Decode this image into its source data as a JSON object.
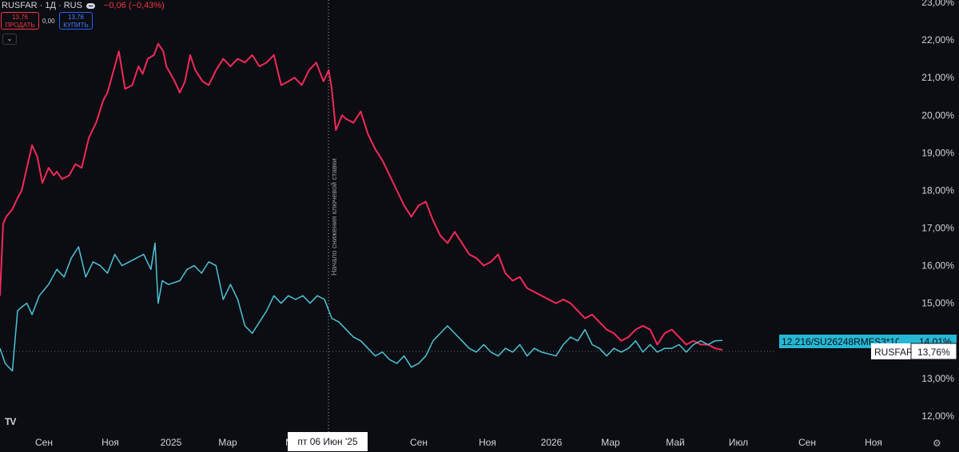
{
  "header": {
    "symbol": "RUSFAR · 1Д · RUS",
    "change": "−0,06 (−0,43%)",
    "sell_price": "13,76",
    "sell_label": "ПРОДАТЬ",
    "spread": "0,00",
    "buy_price": "13,76",
    "buy_label": "КУПИТЬ",
    "collapse_icon": "chevron-down-icon"
  },
  "logo": "TV",
  "settings_icon": "gear-icon",
  "colors": {
    "background": "#0b0d12",
    "rusfar": "#f2295b",
    "bond": "#4fc3d6",
    "axis_text": "#d1d4dc"
  },
  "crosshair_date": "пт 06 Июн '25",
  "annotation": "Начало снижения ключевой ставки",
  "labels": {
    "bond_name": "12.216/SU26248RMFS3*100",
    "bond_value": "14,01%",
    "rusfar_name": "RUSFAR",
    "rusfar_value": "13,76%"
  },
  "chart_data": {
    "type": "line",
    "x_ticks": [
      "Сен",
      "Ноя",
      "2025",
      "Мар",
      "М",
      "Сен",
      "Ноя",
      "2026",
      "Мар",
      "Май",
      "Июл",
      "Сен",
      "Ноя"
    ],
    "y_ticks": [
      "12,00%",
      "13,00%",
      "14,00%",
      "15,00%",
      "16,00%",
      "17,00%",
      "18,00%",
      "19,00%",
      "20,00%",
      "21,00%",
      "22,00%",
      "23,00%"
    ],
    "ylim": [
      11.7,
      23.1
    ],
    "grid": false,
    "series": [
      {
        "name": "RUSFAR",
        "color": "#f2295b",
        "x": [
          "2024-07-20",
          "2024-07-23",
          "2024-07-26",
          "2024-08-01",
          "2024-08-06",
          "2024-08-10",
          "2024-08-15",
          "2024-08-20",
          "2024-08-25",
          "2024-08-30",
          "2024-09-05",
          "2024-09-10",
          "2024-09-13",
          "2024-09-18",
          "2024-09-25",
          "2024-10-01",
          "2024-10-07",
          "2024-10-14",
          "2024-10-21",
          "2024-10-28",
          "2024-11-01",
          "2024-11-06",
          "2024-11-12",
          "2024-11-18",
          "2024-11-25",
          "2024-12-01",
          "2024-12-05",
          "2024-12-10",
          "2024-12-16",
          "2024-12-20",
          "2024-12-25",
          "2024-12-28",
          "2025-01-05",
          "2025-01-10",
          "2025-01-15",
          "2025-01-20",
          "2025-01-25",
          "2025-02-01",
          "2025-02-07",
          "2025-02-14",
          "2025-02-21",
          "2025-02-28",
          "2025-03-07",
          "2025-03-14",
          "2025-03-21",
          "2025-03-28",
          "2025-04-04",
          "2025-04-11",
          "2025-04-18",
          "2025-04-25",
          "2025-05-01",
          "2025-05-08",
          "2025-05-15",
          "2025-05-22",
          "2025-05-29",
          "2025-06-03",
          "2025-06-06",
          "2025-06-10",
          "2025-06-16",
          "2025-06-20",
          "2025-06-27",
          "2025-07-04",
          "2025-07-11",
          "2025-07-18",
          "2025-07-25",
          "2025-08-01",
          "2025-08-08",
          "2025-08-15",
          "2025-08-22",
          "2025-08-29",
          "2025-09-05",
          "2025-09-12",
          "2025-09-19",
          "2025-09-26",
          "2025-10-03",
          "2025-10-10",
          "2025-10-17",
          "2025-10-24",
          "2025-10-31",
          "2025-11-07",
          "2025-11-14",
          "2025-11-21",
          "2025-11-28",
          "2025-12-05",
          "2025-12-12",
          "2025-12-19",
          "2025-12-26",
          "2026-01-09",
          "2026-01-16",
          "2026-01-23",
          "2026-01-30",
          "2026-02-06",
          "2026-02-13",
          "2026-02-20",
          "2026-02-27",
          "2026-03-06",
          "2026-03-13",
          "2026-03-20",
          "2026-03-27",
          "2026-04-03",
          "2026-04-10",
          "2026-04-17",
          "2026-04-24",
          "2026-05-01",
          "2026-05-08",
          "2026-05-15",
          "2026-05-22",
          "2026-05-29",
          "2026-06-05",
          "2026-06-12",
          "2026-06-19"
        ],
        "values": [
          15.2,
          17.1,
          17.3,
          17.5,
          17.8,
          18.0,
          18.6,
          19.2,
          18.9,
          18.2,
          18.6,
          18.4,
          18.5,
          18.3,
          18.4,
          18.7,
          18.6,
          19.4,
          19.8,
          20.4,
          20.6,
          21.1,
          21.7,
          20.7,
          20.8,
          21.3,
          21.1,
          21.5,
          21.6,
          21.9,
          21.7,
          21.3,
          20.9,
          20.6,
          20.9,
          21.6,
          21.2,
          20.9,
          20.8,
          21.2,
          21.5,
          21.3,
          21.5,
          21.4,
          21.6,
          21.3,
          21.4,
          21.6,
          20.8,
          20.9,
          21.0,
          20.8,
          21.2,
          21.4,
          20.9,
          21.2,
          20.7,
          19.6,
          20.0,
          19.9,
          19.8,
          20.1,
          19.5,
          19.1,
          18.8,
          18.4,
          18.0,
          17.6,
          17.3,
          17.6,
          17.7,
          17.2,
          16.8,
          16.6,
          16.9,
          16.6,
          16.3,
          16.2,
          16.0,
          16.1,
          16.3,
          15.8,
          15.6,
          15.7,
          15.4,
          15.3,
          15.2,
          15.0,
          15.1,
          15.0,
          14.8,
          14.6,
          14.7,
          14.5,
          14.3,
          14.2,
          14.0,
          14.1,
          14.3,
          14.4,
          14.3,
          13.9,
          14.2,
          14.3,
          14.1,
          13.9,
          14.0,
          13.9,
          13.9,
          13.8,
          13.76
        ]
      },
      {
        "name": "12.216/SU26248RMFS3*100",
        "color": "#4fc3d6",
        "x": [
          "2024-07-20",
          "2024-07-25",
          "2024-08-01",
          "2024-08-06",
          "2024-08-10",
          "2024-08-15",
          "2024-08-20",
          "2024-08-27",
          "2024-09-05",
          "2024-09-13",
          "2024-09-20",
          "2024-09-27",
          "2024-10-04",
          "2024-10-11",
          "2024-10-18",
          "2024-10-25",
          "2024-11-01",
          "2024-11-08",
          "2024-11-15",
          "2024-11-22",
          "2024-11-29",
          "2024-12-06",
          "2024-12-13",
          "2024-12-17",
          "2024-12-20",
          "2024-12-24",
          "2024-12-30",
          "2025-01-10",
          "2025-01-17",
          "2025-01-24",
          "2025-01-31",
          "2025-02-07",
          "2025-02-14",
          "2025-02-21",
          "2025-02-28",
          "2025-03-07",
          "2025-03-14",
          "2025-03-21",
          "2025-03-28",
          "2025-04-04",
          "2025-04-11",
          "2025-04-18",
          "2025-04-25",
          "2025-05-02",
          "2025-05-09",
          "2025-05-16",
          "2025-05-23",
          "2025-05-30",
          "2025-06-06",
          "2025-06-13",
          "2025-06-20",
          "2025-06-27",
          "2025-07-04",
          "2025-07-11",
          "2025-07-18",
          "2025-07-25",
          "2025-08-01",
          "2025-08-08",
          "2025-08-15",
          "2025-08-22",
          "2025-08-29",
          "2025-09-05",
          "2025-09-12",
          "2025-09-19",
          "2025-09-26",
          "2025-10-03",
          "2025-10-10",
          "2025-10-17",
          "2025-10-24",
          "2025-10-31",
          "2025-11-07",
          "2025-11-14",
          "2025-11-21",
          "2025-11-28",
          "2025-12-05",
          "2025-12-12",
          "2025-12-19",
          "2025-12-26",
          "2026-01-09",
          "2026-01-16",
          "2026-01-23",
          "2026-01-30",
          "2026-02-06",
          "2026-02-13",
          "2026-02-20",
          "2026-02-27",
          "2026-03-06",
          "2026-03-13",
          "2026-03-20",
          "2026-03-27",
          "2026-04-03",
          "2026-04-10",
          "2026-04-17",
          "2026-04-24",
          "2026-05-01",
          "2026-05-08",
          "2026-05-15",
          "2026-05-22",
          "2026-05-29",
          "2026-06-05",
          "2026-06-12",
          "2026-06-19"
        ],
        "values": [
          13.8,
          13.4,
          13.2,
          14.8,
          14.9,
          15.0,
          14.7,
          15.2,
          15.5,
          15.9,
          15.7,
          16.2,
          16.5,
          15.7,
          16.1,
          16.0,
          15.8,
          16.3,
          16.0,
          16.1,
          16.2,
          16.3,
          15.9,
          16.6,
          15.0,
          15.6,
          15.5,
          15.6,
          15.9,
          16.0,
          15.8,
          16.1,
          16.0,
          15.1,
          15.5,
          15.1,
          14.4,
          14.2,
          14.5,
          14.8,
          15.2,
          15.0,
          15.2,
          15.1,
          15.2,
          15.0,
          15.2,
          15.1,
          14.6,
          14.5,
          14.3,
          14.1,
          14.0,
          13.8,
          13.6,
          13.7,
          13.5,
          13.4,
          13.6,
          13.3,
          13.4,
          13.6,
          14.0,
          14.2,
          14.4,
          14.2,
          14.0,
          13.8,
          13.7,
          13.9,
          13.7,
          13.6,
          13.8,
          13.7,
          13.9,
          13.6,
          13.8,
          13.7,
          13.6,
          13.9,
          14.1,
          14.0,
          14.3,
          13.9,
          13.8,
          13.6,
          13.8,
          13.7,
          13.8,
          14.0,
          13.7,
          13.9,
          13.7,
          13.8,
          13.8,
          13.9,
          13.7,
          13.9,
          14.0,
          13.9,
          14.0,
          14.01
        ]
      }
    ]
  }
}
